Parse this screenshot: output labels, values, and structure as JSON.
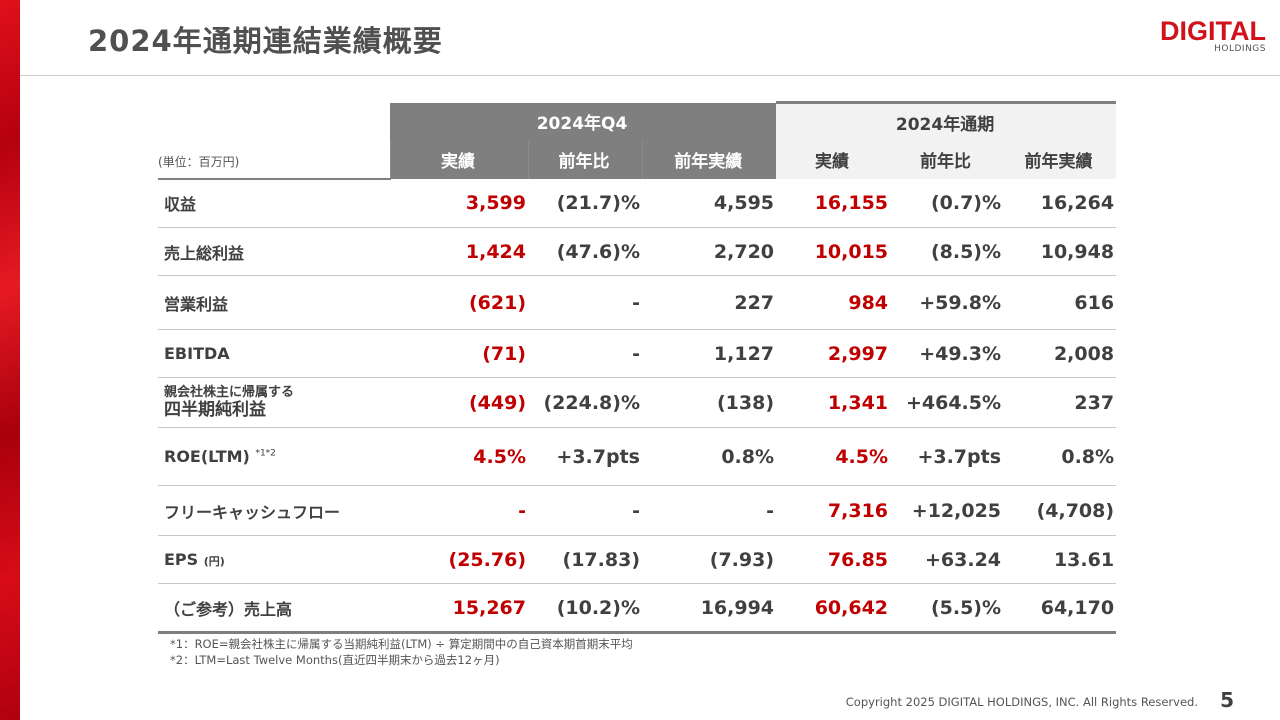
{
  "title": "2024年通期連結業績概要",
  "logo": {
    "main": "DIGITAL",
    "sub": "HOLDINGS"
  },
  "table": {
    "unit": "(単位：百万円)",
    "groups": [
      "2024年Q4",
      "2024年通期"
    ],
    "subheaders": [
      "実績",
      "前年比",
      "前年実績",
      "実績",
      "前年比",
      "前年実績"
    ],
    "rows": [
      {
        "label": "収益",
        "v": [
          "3,599",
          "(21.7)%",
          "4,595",
          "16,155",
          "(0.7)%",
          "16,264"
        ]
      },
      {
        "label": "売上総利益",
        "v": [
          "1,424",
          "(47.6)%",
          "2,720",
          "10,015",
          "(8.5)%",
          "10,948"
        ]
      },
      {
        "label": "営業利益",
        "v": [
          "(621)",
          "-",
          "227",
          "984",
          "+59.8%",
          "616"
        ]
      },
      {
        "label": "EBITDA",
        "v": [
          "(71)",
          "-",
          "1,127",
          "2,997",
          "+49.3%",
          "2,008"
        ]
      },
      {
        "label": "親会社株主に帰属する",
        "label2": "四半期純利益",
        "v": [
          "(449)",
          "(224.8)%",
          "(138)",
          "1,341",
          "+464.5%",
          "237"
        ]
      },
      {
        "label": "ROE(LTM)",
        "sup": "*1*2",
        "v": [
          "4.5%",
          "+3.7pts",
          "0.8%",
          "4.5%",
          "+3.7pts",
          "0.8%"
        ]
      },
      {
        "label": "フリーキャッシュフロー",
        "v": [
          "-",
          "-",
          "-",
          "7,316",
          "+12,025",
          "(4,708)"
        ]
      },
      {
        "label": "EPS",
        "unit": "(円)",
        "v": [
          "(25.76)",
          "(17.83)",
          "(7.93)",
          "76.85",
          "+63.24",
          "13.61"
        ]
      },
      {
        "label": "（ご参考）売上高",
        "v": [
          "15,267",
          "(10.2)%",
          "16,994",
          "60,642",
          "(5.5)%",
          "64,170"
        ]
      }
    ]
  },
  "notes": [
    "*1：ROE=親会社株主に帰属する当期純利益(LTM) ÷ 算定期間中の自己資本期首期末平均",
    "*2：LTM=Last Twelve Months(直近四半期末から過去12ヶ月)"
  ],
  "copyright": "Copyright 2025 DIGITAL HOLDINGS, INC. All Rights Reserved.",
  "page": "5",
  "colors": {
    "accent": "#c00000",
    "header": "#7f7f7f"
  }
}
